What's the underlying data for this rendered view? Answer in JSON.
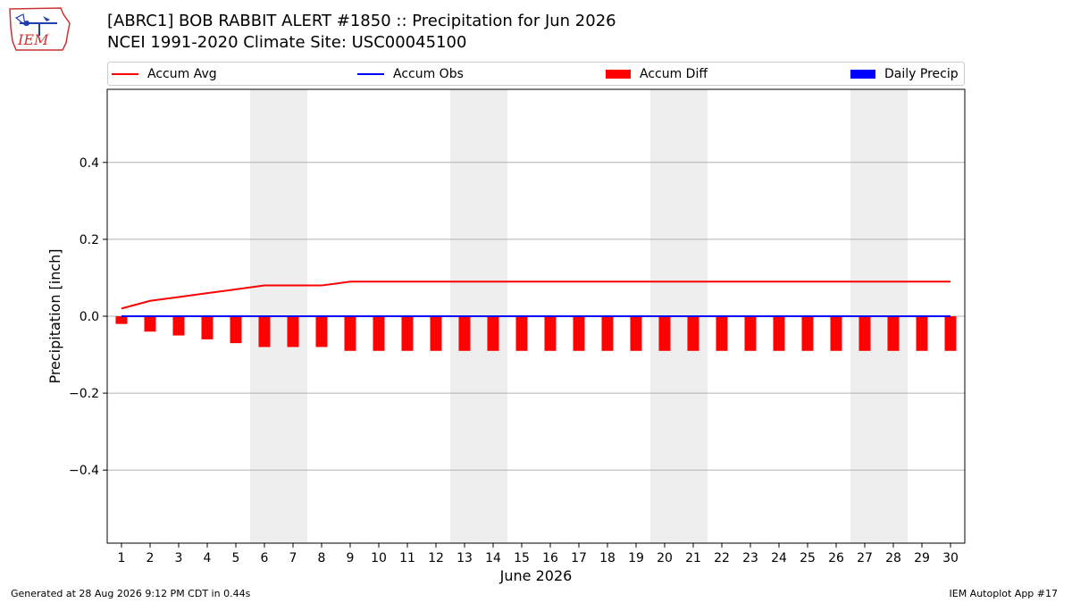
{
  "header": {
    "title_line1": "[ABRC1] BOB RABBIT ALERT #1850 :: Precipitation for Jun 2026",
    "title_line2": "NCEI 1991-2020 Climate Site: USC00045100"
  },
  "logo": {
    "text": "IEM",
    "icon": "iem-iowa-logo-icon"
  },
  "legend": {
    "items": [
      {
        "label": "Accum Avg",
        "kind": "line",
        "color": "#ff0000"
      },
      {
        "label": "Accum Obs",
        "kind": "line",
        "color": "#0000ff"
      },
      {
        "label": "Accum Diff",
        "kind": "box",
        "color": "#ff0000"
      },
      {
        "label": "Daily Precip",
        "kind": "box",
        "color": "#0000ff"
      }
    ]
  },
  "footer": {
    "left": "Generated at 28 Aug 2026 9:12 PM CDT in 0.44s",
    "right": "IEM Autoplot App #17"
  },
  "chart_data": {
    "type": "line",
    "title": "[ABRC1] BOB RABBIT ALERT #1850 :: Precipitation for Jun 2026",
    "subtitle": "NCEI 1991-2020 Climate Site: USC00045100",
    "xlabel": "June 2026",
    "ylabel": "Precipitation [inch]",
    "x": [
      1,
      2,
      3,
      4,
      5,
      6,
      7,
      8,
      9,
      10,
      11,
      12,
      13,
      14,
      15,
      16,
      17,
      18,
      19,
      20,
      21,
      22,
      23,
      24,
      25,
      26,
      27,
      28,
      29,
      30
    ],
    "xlim": [
      0.5,
      30.5
    ],
    "ylim": [
      -0.59,
      0.59
    ],
    "yticks": [
      -0.4,
      -0.2,
      0.0,
      0.2,
      0.4
    ],
    "ytick_labels": [
      "−0.4",
      "−0.2",
      "0.0",
      "0.2",
      "0.4"
    ],
    "grid": "horizontal",
    "legend_position": "top",
    "weekend_shading": [
      [
        6,
        7
      ],
      [
        13,
        14
      ],
      [
        20,
        21
      ],
      [
        27,
        28
      ]
    ],
    "series": [
      {
        "name": "Accum Avg",
        "kind": "line",
        "color": "#ff0000",
        "values": [
          0.02,
          0.04,
          0.05,
          0.06,
          0.07,
          0.08,
          0.08,
          0.08,
          0.09,
          0.09,
          0.09,
          0.09,
          0.09,
          0.09,
          0.09,
          0.09,
          0.09,
          0.09,
          0.09,
          0.09,
          0.09,
          0.09,
          0.09,
          0.09,
          0.09,
          0.09,
          0.09,
          0.09,
          0.09,
          0.09
        ]
      },
      {
        "name": "Accum Obs",
        "kind": "line",
        "color": "#0000ff",
        "values": [
          0,
          0,
          0,
          0,
          0,
          0,
          0,
          0,
          0,
          0,
          0,
          0,
          0,
          0,
          0,
          0,
          0,
          0,
          0,
          0,
          0,
          0,
          0,
          0,
          0,
          0,
          0,
          0,
          0,
          0
        ]
      },
      {
        "name": "Accum Diff",
        "kind": "bar",
        "color": "#ff0000",
        "values": [
          -0.02,
          -0.04,
          -0.05,
          -0.06,
          -0.07,
          -0.08,
          -0.08,
          -0.08,
          -0.09,
          -0.09,
          -0.09,
          -0.09,
          -0.09,
          -0.09,
          -0.09,
          -0.09,
          -0.09,
          -0.09,
          -0.09,
          -0.09,
          -0.09,
          -0.09,
          -0.09,
          -0.09,
          -0.09,
          -0.09,
          -0.09,
          -0.09,
          -0.09,
          -0.09
        ]
      },
      {
        "name": "Daily Precip",
        "kind": "bar",
        "color": "#0000ff",
        "values": [
          0,
          0,
          0,
          0,
          0,
          0,
          0,
          0,
          0,
          0,
          0,
          0,
          0,
          0,
          0,
          0,
          0,
          0,
          0,
          0,
          0,
          0,
          0,
          0,
          0,
          0,
          0,
          0,
          0,
          0
        ]
      }
    ]
  }
}
